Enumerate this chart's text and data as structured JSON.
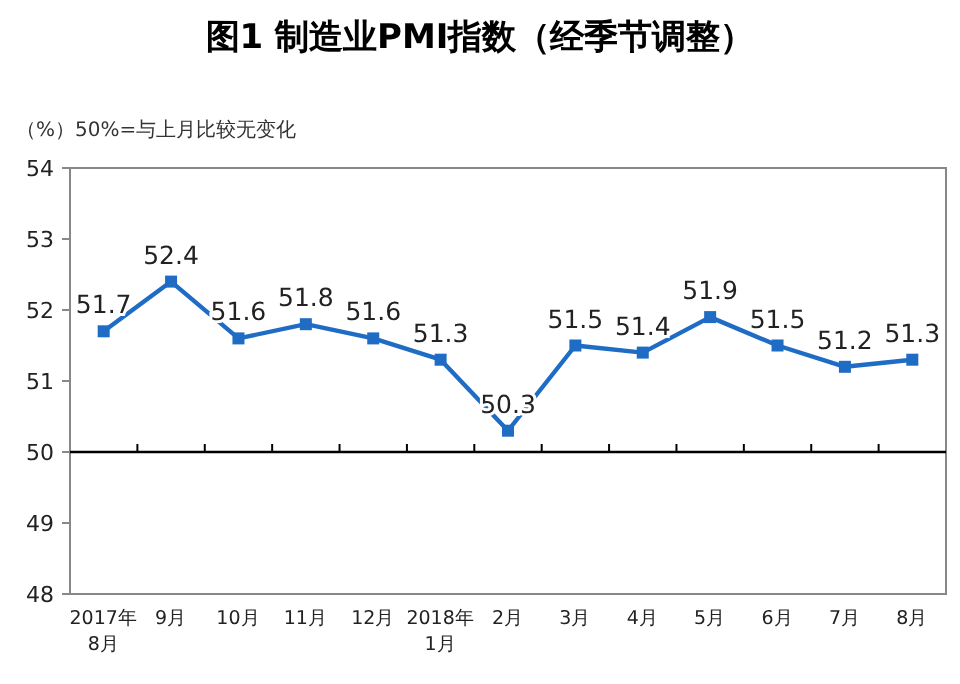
{
  "chart_data": {
    "type": "line",
    "title": "图1 制造业PMI指数（经季节调整）",
    "subtitle": "（%）50%=与上月比较无变化",
    "categories": [
      "2017年\n8月",
      "9月",
      "10月",
      "11月",
      "12月",
      "2018年\n1月",
      "2月",
      "3月",
      "4月",
      "5月",
      "6月",
      "7月",
      "8月"
    ],
    "series": [
      {
        "color": "#1f6cc4",
        "values": [
          51.7,
          52.4,
          51.6,
          51.8,
          51.6,
          51.3,
          50.3,
          51.5,
          51.4,
          51.9,
          51.5,
          51.2,
          51.3
        ]
      }
    ],
    "ylim": [
      48,
      54
    ],
    "yticks": [
      48,
      49,
      50,
      51,
      52,
      53,
      54
    ],
    "ref_lines": [
      {
        "axis": "y",
        "value": 50,
        "color": "#000000"
      }
    ],
    "data_labels": true,
    "marker": "square",
    "line_style": "solid",
    "grid": false
  }
}
